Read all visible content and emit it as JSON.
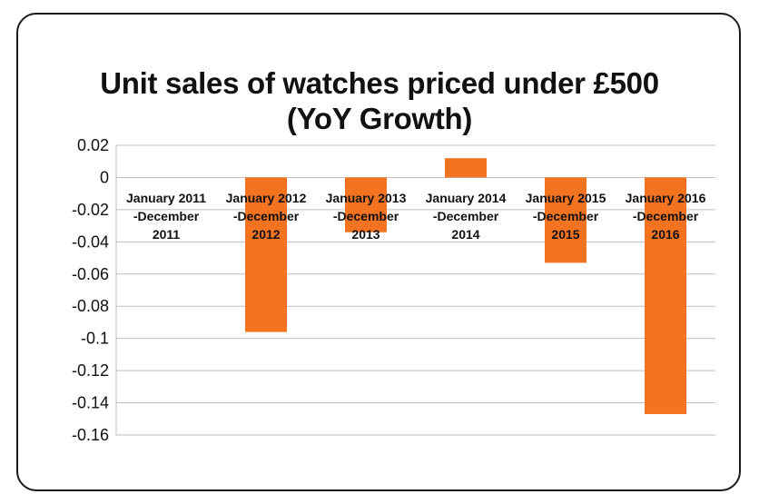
{
  "chart_data": {
    "type": "bar",
    "title_lines": [
      "Unit sales of watches priced under £500",
      "(YoY Growth)"
    ],
    "categories": [
      [
        "January 2011",
        "-December",
        "2011"
      ],
      [
        "January 2012",
        "-December",
        "2012"
      ],
      [
        "January 2013",
        "-December",
        "2013"
      ],
      [
        "January 2014",
        "-December",
        "2014"
      ],
      [
        "January 2015",
        "-December",
        "2015"
      ],
      [
        "January 2016",
        "-December",
        "2016"
      ]
    ],
    "values": [
      0,
      -0.096,
      -0.034,
      0.012,
      -0.053,
      -0.147
    ],
    "ylim": [
      -0.16,
      0.02
    ],
    "yticks": [
      "0.02",
      "0",
      "-0.02",
      "-0.04",
      "-0.06",
      "-0.08",
      "-0.1",
      "-0.12",
      "-0.14",
      "-0.16"
    ],
    "ytick_values": [
      0.02,
      0,
      -0.02,
      -0.04,
      -0.06,
      -0.08,
      -0.1,
      -0.12,
      -0.14,
      -0.16
    ],
    "grid": true,
    "xlabel": "",
    "ylabel": "",
    "bar_color": "#f47321",
    "grid_color": "#bfbfbf"
  }
}
